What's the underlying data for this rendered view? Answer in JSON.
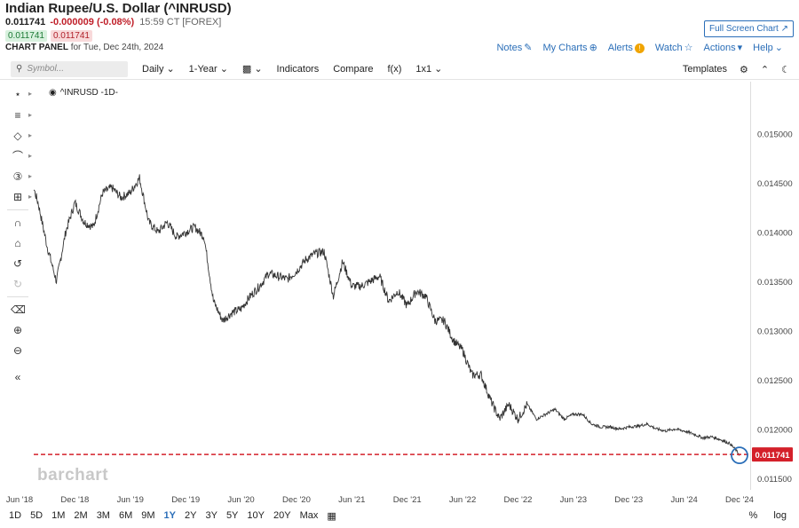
{
  "header": {
    "title": "Indian Rupee/U.S. Dollar (^INRUSD)",
    "last": "0.011741",
    "change": "-0.000009 (-0.08%)",
    "time": "15:59 CT [FOREX]",
    "bid": "0.011741",
    "ask": "0.011741",
    "panel_label": "CHART PANEL",
    "panel_date": "for Tue, Dec 24th, 2024",
    "full_screen": "Full Screen Chart"
  },
  "topnav": {
    "notes": "Notes",
    "my_charts": "My Charts",
    "alerts": "Alerts",
    "watch": "Watch",
    "actions": "Actions",
    "help": "Help"
  },
  "toolbar": {
    "search_placeholder": "Symbol...",
    "interval": "Daily",
    "period": "1-Year",
    "indicators": "Indicators",
    "compare": "Compare",
    "fx": "f(x)",
    "layout": "1x1",
    "templates": "Templates"
  },
  "symbol_label": "^INRUSD -1D-",
  "watermark": "barchart",
  "ranges": [
    "1D",
    "5D",
    "1M",
    "2M",
    "3M",
    "6M",
    "9M",
    "1Y",
    "2Y",
    "3Y",
    "5Y",
    "10Y",
    "20Y",
    "Max"
  ],
  "active_range": "1Y",
  "range_right": {
    "percent": "%",
    "log": "log"
  },
  "colors": {
    "accent": "#2a6eb8",
    "down": "#c0202a",
    "last_price_line": "#d4202a",
    "price_line": "#333333"
  },
  "chart_data": {
    "type": "line",
    "title": "",
    "xlabel": "",
    "ylabel": "",
    "x_ticks": [
      "Jun '18",
      "Dec '18",
      "Jun '19",
      "Dec '19",
      "Jun '20",
      "Dec '20",
      "Jun '21",
      "Dec '21",
      "Jun '22",
      "Dec '22",
      "Jun '23",
      "Dec '23",
      "Jun '24",
      "Dec '24"
    ],
    "y_ticks": [
      "0.015000",
      "0.014500",
      "0.014000",
      "0.013500",
      "0.013000",
      "0.012500",
      "0.012000",
      "0.011500"
    ],
    "ylim": [
      0.0114,
      0.0155
    ],
    "last_price": 0.011741,
    "last_price_label": "0.011741",
    "series": [
      {
        "x": [
          "2018-06",
          "2018-07",
          "2018-08",
          "2018-09",
          "2018-10",
          "2018-11",
          "2018-12",
          "2019-01",
          "2019-02",
          "2019-03",
          "2019-04",
          "2019-05",
          "2019-06",
          "2019-07",
          "2019-08",
          "2019-09",
          "2019-10",
          "2019-11",
          "2019-12",
          "2020-01",
          "2020-02",
          "2020-03",
          "2020-04",
          "2020-05",
          "2020-06",
          "2020-07",
          "2020-08",
          "2020-09",
          "2020-10",
          "2020-11",
          "2020-12",
          "2021-01",
          "2021-02",
          "2021-03",
          "2021-04",
          "2021-05",
          "2021-06",
          "2021-07",
          "2021-08",
          "2021-09",
          "2021-10",
          "2021-11",
          "2021-12",
          "2022-01",
          "2022-02",
          "2022-03",
          "2022-04",
          "2022-05",
          "2022-06",
          "2022-07",
          "2022-08",
          "2022-09",
          "2022-10",
          "2022-11",
          "2022-12",
          "2023-01",
          "2023-02",
          "2023-03",
          "2023-04",
          "2023-05",
          "2023-06",
          "2023-07",
          "2023-08",
          "2023-09",
          "2023-10",
          "2023-11",
          "2023-12",
          "2024-01",
          "2024-02",
          "2024-03",
          "2024-04",
          "2024-05",
          "2024-06",
          "2024-07",
          "2024-08",
          "2024-09",
          "2024-10",
          "2024-11",
          "2024-12"
        ],
        "values": [
          0.01475,
          0.0146,
          0.0143,
          0.01385,
          0.0135,
          0.014,
          0.0143,
          0.0141,
          0.01405,
          0.0144,
          0.01445,
          0.01435,
          0.0144,
          0.01455,
          0.0141,
          0.014,
          0.0141,
          0.01395,
          0.014,
          0.01405,
          0.01395,
          0.0133,
          0.0131,
          0.01318,
          0.01322,
          0.01335,
          0.01345,
          0.01358,
          0.01355,
          0.01352,
          0.0136,
          0.01372,
          0.01378,
          0.0138,
          0.01335,
          0.0137,
          0.01345,
          0.01345,
          0.0135,
          0.01355,
          0.0133,
          0.0134,
          0.01325,
          0.0134,
          0.01335,
          0.0131,
          0.0131,
          0.0129,
          0.0128,
          0.01255,
          0.01255,
          0.0123,
          0.0121,
          0.01225,
          0.0121,
          0.01225,
          0.0121,
          0.01215,
          0.0122,
          0.0121,
          0.01215,
          0.01215,
          0.01205,
          0.01202,
          0.01202,
          0.012,
          0.01202,
          0.01203,
          0.01205,
          0.012,
          0.01198,
          0.012,
          0.01198,
          0.01195,
          0.01191,
          0.01192,
          0.01189,
          0.01185,
          0.01174
        ]
      }
    ]
  }
}
